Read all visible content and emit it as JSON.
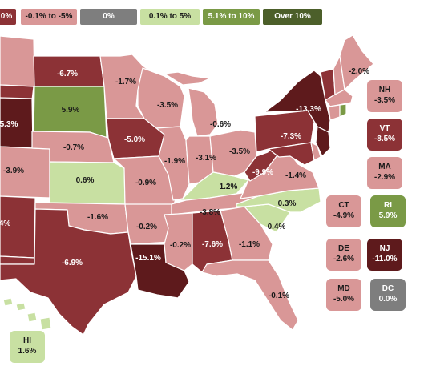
{
  "colors": {
    "deep_decline": "#5e1a1c",
    "decline": "#8c3236",
    "slight_decline": "#d99797",
    "zero": "#7e7e7e",
    "slight_growth": "#c8e0a2",
    "growth": "#7a9a46",
    "strong_growth": "#4c5f2a",
    "border": "#ffffff"
  },
  "legend": [
    {
      "label": "0%",
      "color": "#8c3236",
      "text_color": "#ffffff"
    },
    {
      "label": "-0.1% to -5%",
      "color": "#d99797",
      "text_color": "#1a1a1a"
    },
    {
      "label": "0%",
      "color": "#7e7e7e",
      "text_color": "#ffffff"
    },
    {
      "label": "0.1% to 5%",
      "color": "#c8e0a2",
      "text_color": "#1a1a1a"
    },
    {
      "label": "5.1% to 10%",
      "color": "#7a9a46",
      "text_color": "#ffffff"
    },
    {
      "label": "Over 10%",
      "color": "#4c5f2a",
      "text_color": "#ffffff"
    }
  ],
  "map_labels": [
    {
      "text": "-6.7%",
      "light": true
    },
    {
      "text": "-1.7%",
      "light": false
    },
    {
      "text": "-2.0%",
      "light": false
    },
    {
      "text": "-13.3%",
      "light": true
    },
    {
      "text": "5.9%",
      "light": false
    },
    {
      "text": "-3.5%",
      "light": false
    },
    {
      "text": "5.3%",
      "light": true
    },
    {
      "text": "-0.6%",
      "light": false
    },
    {
      "text": "-5.0%",
      "light": true
    },
    {
      "text": "-7.3%",
      "light": true
    },
    {
      "text": "-0.7%",
      "light": false
    },
    {
      "text": "-3.1%",
      "light": false
    },
    {
      "text": "-3.5%",
      "light": false
    },
    {
      "text": "-1.9%",
      "light": false
    },
    {
      "text": "-3.9%",
      "light": false
    },
    {
      "text": "0.6%",
      "light": false
    },
    {
      "text": "-0.9%",
      "light": false
    },
    {
      "text": "1.2%",
      "light": false
    },
    {
      "text": "-9.9%",
      "light": true
    },
    {
      "text": "-1.4%",
      "light": false
    },
    {
      "text": "0.3%",
      "light": false
    },
    {
      "text": "-3.8%",
      "light": false
    },
    {
      "text": "4%",
      "light": true
    },
    {
      "text": "-1.6%",
      "light": false
    },
    {
      "text": "-0.2%",
      "light": false
    },
    {
      "text": "0.4%",
      "light": false
    },
    {
      "text": "-0.2%",
      "light": false
    },
    {
      "text": "-7.6%",
      "light": true
    },
    {
      "text": "-1.1%",
      "light": false
    },
    {
      "text": "-6.9%",
      "light": true
    },
    {
      "text": "-15.1%",
      "light": true
    },
    {
      "text": "-0.1%",
      "light": false
    }
  ],
  "boxes": [
    {
      "abbr": "NH",
      "value": "-3.5%",
      "color": "#d99797",
      "text_color": "#1a1a1a"
    },
    {
      "abbr": "VT",
      "value": "-8.5%",
      "color": "#8c3236",
      "text_color": "#ffffff"
    },
    {
      "abbr": "MA",
      "value": "-2.9%",
      "color": "#d99797",
      "text_color": "#1a1a1a"
    },
    {
      "abbr": "CT",
      "value": "-4.9%",
      "color": "#d99797",
      "text_color": "#1a1a1a"
    },
    {
      "abbr": "RI",
      "value": "5.9%",
      "color": "#7a9a46",
      "text_color": "#ffffff"
    },
    {
      "abbr": "DE",
      "value": "-2.6%",
      "color": "#d99797",
      "text_color": "#1a1a1a"
    },
    {
      "abbr": "NJ",
      "value": "-11.0%",
      "color": "#5e1a1c",
      "text_color": "#ffffff"
    },
    {
      "abbr": "MD",
      "value": "-5.0%",
      "color": "#d99797",
      "text_color": "#1a1a1a"
    },
    {
      "abbr": "DC",
      "value": "0.0%",
      "color": "#7e7e7e",
      "text_color": "#ffffff"
    },
    {
      "abbr": "HI",
      "value": "1.6%",
      "color": "#c8e0a2",
      "text_color": "#1a1a1a"
    }
  ]
}
